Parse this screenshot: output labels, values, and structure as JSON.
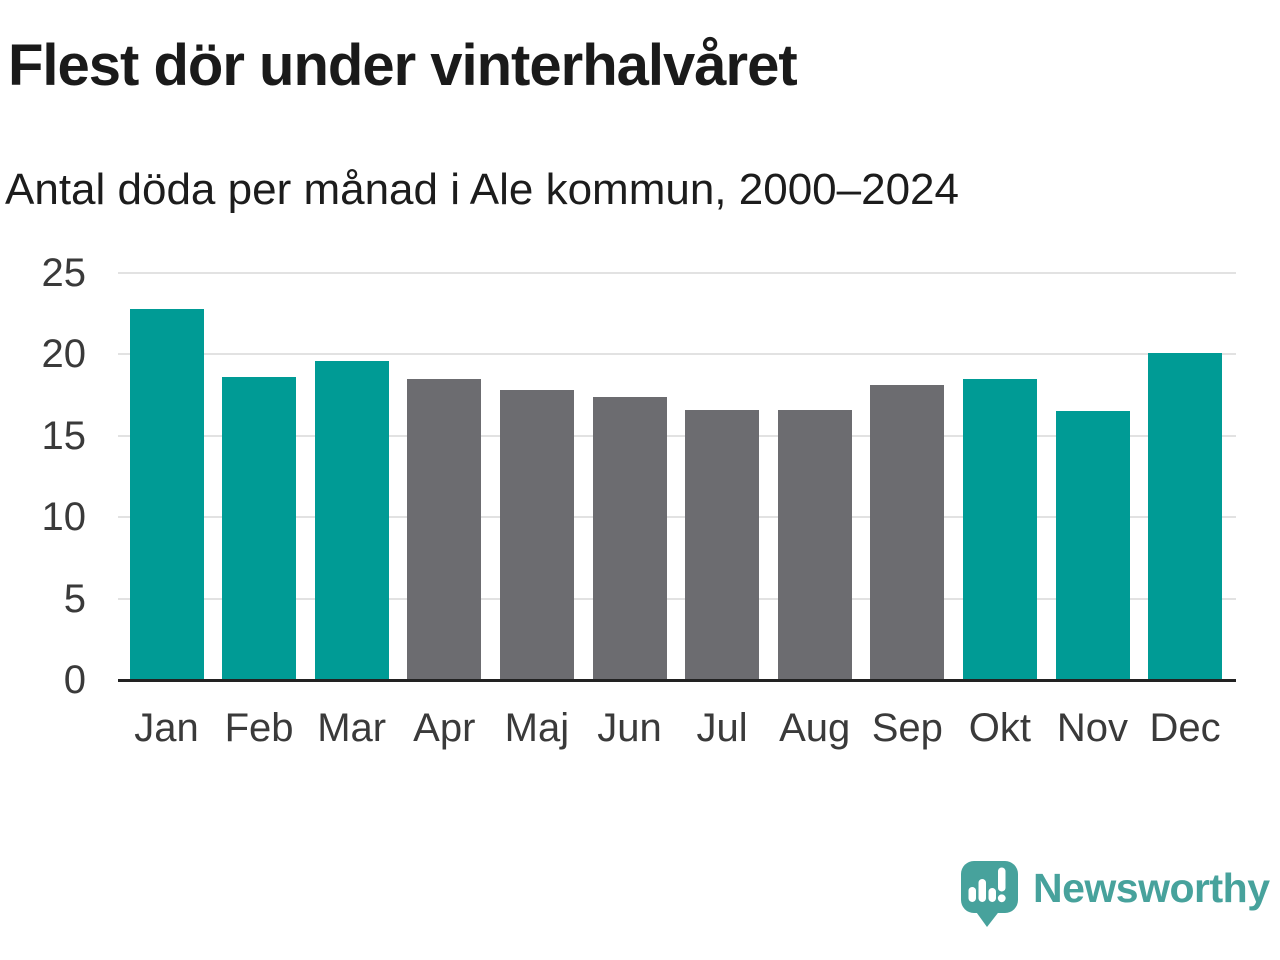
{
  "header": {
    "title": "Flest dör under vinterhalvåret",
    "subtitle": "Antal döda per månad i Ale kommun, 2000–2024"
  },
  "chart_data": {
    "type": "bar",
    "title": "Flest dör under vinterhalvåret",
    "subtitle": "Antal döda per månad i Ale kommun, 2000–2024",
    "categories": [
      "Jan",
      "Feb",
      "Mar",
      "Apr",
      "Maj",
      "Jun",
      "Jul",
      "Aug",
      "Sep",
      "Okt",
      "Nov",
      "Dec"
    ],
    "values": [
      22.8,
      18.6,
      19.6,
      18.5,
      17.8,
      17.4,
      16.6,
      16.6,
      18.1,
      18.5,
      16.5,
      20.1
    ],
    "bar_colors": [
      "#009b95",
      "#009b95",
      "#009b95",
      "#6c6c70",
      "#6c6c70",
      "#6c6c70",
      "#6c6c70",
      "#6c6c70",
      "#6c6c70",
      "#009b95",
      "#009b95",
      "#009b95"
    ],
    "highlighted_categories": [
      "Jan",
      "Feb",
      "Mar",
      "Okt",
      "Nov",
      "Dec"
    ],
    "xlabel": "",
    "ylabel": "",
    "ylim": [
      0,
      25
    ],
    "y_ticks": [
      0,
      5,
      10,
      15,
      20,
      25
    ],
    "grid": true,
    "legend": false,
    "colors": {
      "highlight": "#009b95",
      "neutral": "#6c6c70",
      "gridline": "#e2e2e2",
      "axis_line": "#222222",
      "tick_text": "#3a3a3a"
    }
  },
  "footer": {
    "brand": "Newsworthy",
    "brand_color": "#47a29c",
    "logo_icon": "newsworthy-speech-bubble-bar-chart-icon"
  }
}
